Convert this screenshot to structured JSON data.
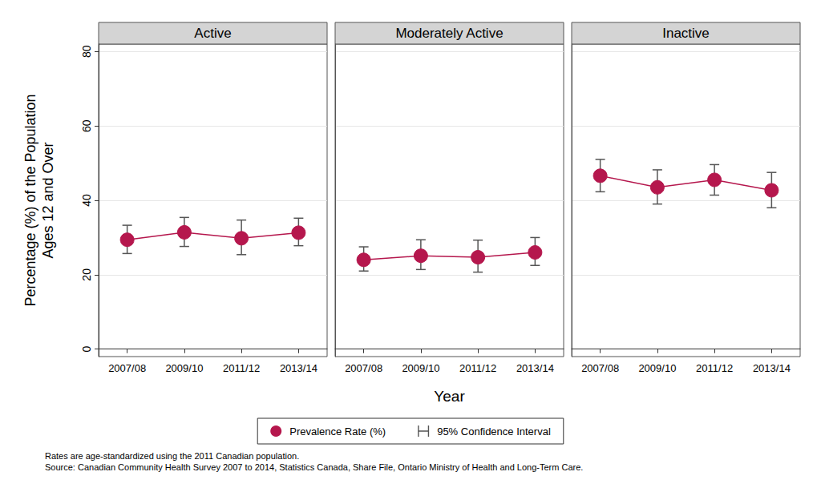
{
  "chart_data": [
    {
      "type": "line",
      "title": "Active",
      "categories": [
        "2007/08",
        "2009/10",
        "2011/12",
        "2013/14"
      ],
      "series": [
        {
          "name": "Prevalence Rate (%)",
          "color": "#b5174d",
          "marker": "circle",
          "values": [
            29.4,
            31.4,
            29.8,
            31.3
          ],
          "ci_lower": [
            25.7,
            27.6,
            25.4,
            27.8
          ],
          "ci_upper": [
            33.3,
            35.4,
            34.7,
            35.2
          ]
        }
      ],
      "ylim": [
        -2,
        82
      ],
      "yticks": [
        0,
        20,
        40,
        60,
        80
      ],
      "grid": true
    },
    {
      "type": "line",
      "title": "Moderately Active",
      "categories": [
        "2007/08",
        "2009/10",
        "2011/12",
        "2013/14"
      ],
      "series": [
        {
          "name": "Prevalence Rate (%)",
          "color": "#b5174d",
          "marker": "circle",
          "values": [
            24.0,
            25.1,
            24.7,
            26.0
          ],
          "ci_lower": [
            21.0,
            21.4,
            20.7,
            22.5
          ],
          "ci_upper": [
            27.5,
            29.4,
            29.3,
            30.0
          ]
        }
      ],
      "ylim": [
        -2,
        82
      ],
      "yticks": [
        0,
        20,
        40,
        60,
        80
      ],
      "grid": true,
      "tick_labels": "x"
    },
    {
      "type": "line",
      "title": "Inactive",
      "categories": [
        "2007/08",
        "2009/10",
        "2011/12",
        "2013/14"
      ],
      "series": [
        {
          "name": "Prevalence Rate (%)",
          "color": "#b5174d",
          "marker": "circle",
          "values": [
            46.6,
            43.5,
            45.5,
            42.7
          ],
          "ci_lower": [
            42.3,
            39.0,
            41.4,
            38.0
          ],
          "ci_upper": [
            51.0,
            48.2,
            49.6,
            47.5
          ]
        }
      ],
      "ylim": [
        -2,
        82
      ],
      "yticks": [
        0,
        20,
        40,
        60,
        80
      ],
      "grid": true,
      "tick_labels": "x"
    }
  ],
  "ylabel": [
    "Percentage (%) of the Population",
    "Ages 12 and Over"
  ],
  "xlabel": "Year",
  "ci_label": "95% Confidence Interval",
  "ci_color": "#555555",
  "legend": "bottom",
  "notes": [
    "Rates are age-standardized using the 2011 Canadian population.",
    "Source: Canadian Community Health Survey 2007 to 2014, Statistics Canada, Share File, Ontario Ministry of Health and Long-Term Care."
  ]
}
